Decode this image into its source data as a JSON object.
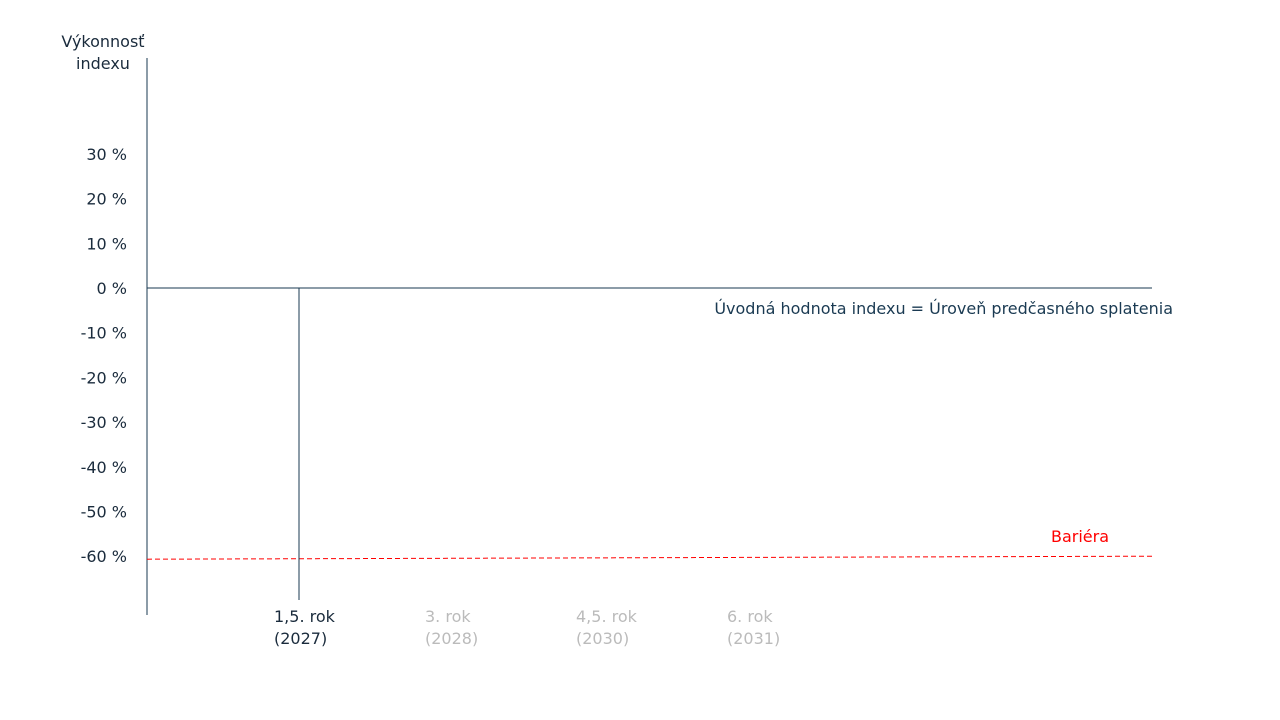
{
  "chart_data": {
    "type": "line",
    "ylabel": [
      "Výkonnosť",
      "indexu"
    ],
    "y_ticks": [
      {
        "value": 30,
        "label": "30 %"
      },
      {
        "value": 20,
        "label": "20 %"
      },
      {
        "value": 10,
        "label": "10 %"
      },
      {
        "value": 0,
        "label": "0 %"
      },
      {
        "value": -10,
        "label": "-10 %"
      },
      {
        "value": -20,
        "label": "-20 %"
      },
      {
        "value": -30,
        "label": "-30 %"
      },
      {
        "value": -40,
        "label": "-40 %"
      },
      {
        "value": -50,
        "label": "-50 %"
      },
      {
        "value": -60,
        "label": "-60 %"
      }
    ],
    "x_ticks": [
      {
        "label": [
          "1,5. rok",
          "(2027)"
        ],
        "active": true
      },
      {
        "label": [
          "3. rok",
          "(2028)"
        ],
        "active": false
      },
      {
        "label": [
          "4,5. rok",
          "(2030)"
        ],
        "active": false
      },
      {
        "label": [
          "6. rok",
          "(2031)"
        ],
        "active": false
      }
    ],
    "reference_lines": [
      {
        "name": "Úvodná hodnota indexu = Úroveň predčasného splatenia",
        "value": 0,
        "color": "#1a3a52",
        "style": "solid"
      },
      {
        "name": "Bariéra",
        "value": -60,
        "color": "#ff0000",
        "style": "dashed"
      }
    ],
    "ylim": [
      -70,
      50
    ]
  },
  "colors": {
    "axis": "#1a3a52",
    "text": "#1a2b3c",
    "inactive_text": "#bbbbbb",
    "barrier": "#ff0000"
  }
}
